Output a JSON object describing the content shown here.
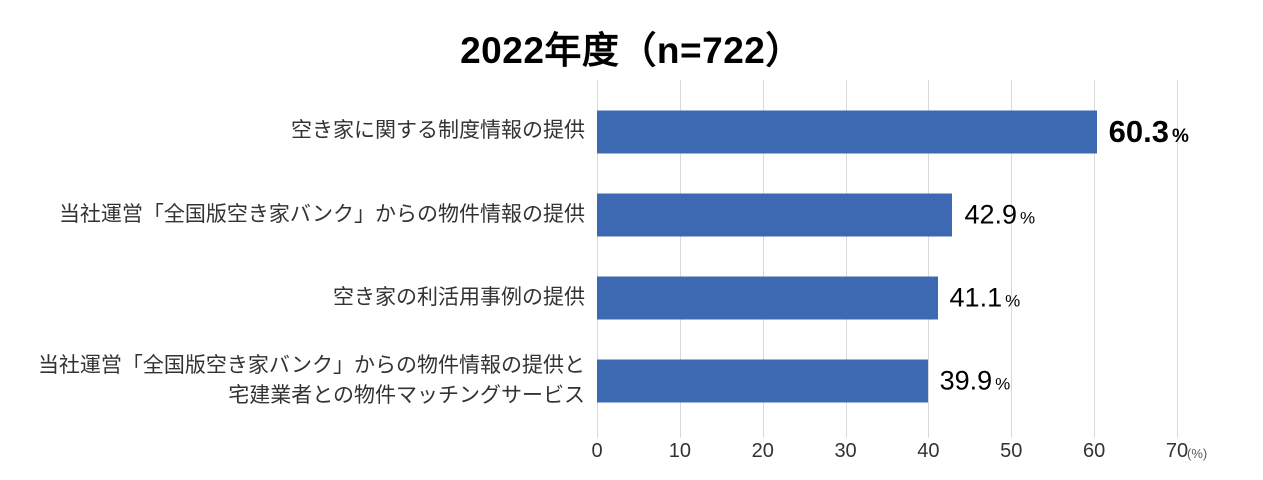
{
  "chart_data": {
    "type": "bar",
    "orientation": "horizontal",
    "title": "2022年度（n=722）",
    "categories": [
      "空き家に関する制度情報の提供",
      "当社運営「全国版空き家バンク」からの物件情報の提供",
      "空き家の利活用事例の提供",
      "当社運営「全国版空き家バンク」からの物件情報の提供と\n宅建業者との物件マッチングサービス"
    ],
    "values": [
      60.3,
      42.9,
      41.1,
      39.9
    ],
    "value_suffix": "%",
    "emphasized": [
      true,
      false,
      false,
      false
    ],
    "xlim": [
      0,
      70
    ],
    "x_ticks": [
      0,
      10,
      20,
      30,
      40,
      50,
      60,
      70
    ],
    "x_unit_label": "(%)",
    "grid": "vertical",
    "legend": "none",
    "colors": {
      "bar": "#3D68B2",
      "gridline": "#D9D9D9",
      "title_text": "#000000",
      "category_text": "#333333",
      "value_text": "#000000",
      "axis_text": "#333333",
      "unit_text": "#595959"
    }
  }
}
